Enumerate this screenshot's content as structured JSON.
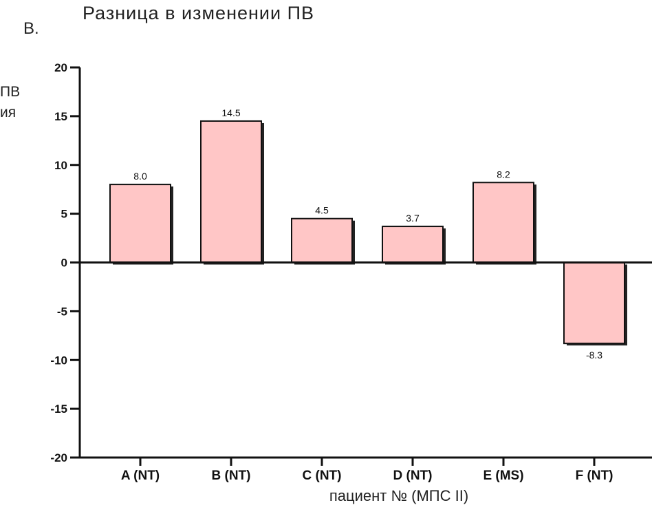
{
  "panel_label": "B.",
  "ylabel_fragments": [
    "ПВ",
    "ия"
  ],
  "chart_data": {
    "type": "bar",
    "title": "Разница в изменении ПВ",
    "xlabel": "пациент № (МПС II)",
    "ylabel": "",
    "categories": [
      "A (NT)",
      "B (NT)",
      "C (NT)",
      "D  (NT)",
      "E (MS)",
      "F (NT)"
    ],
    "values": [
      8.0,
      14.5,
      4.5,
      3.7,
      8.2,
      -8.3
    ],
    "data_labels": [
      "8.0",
      "14.5",
      "4.5",
      "3.7",
      "8.2",
      "-8.3"
    ],
    "ylim": [
      -20,
      20
    ],
    "yticks": [
      20,
      15,
      10,
      5,
      0,
      -5,
      -10,
      -15,
      -20
    ],
    "grid": false,
    "bar_color": "#ffc6c6",
    "bar_stroke": "#111111"
  }
}
